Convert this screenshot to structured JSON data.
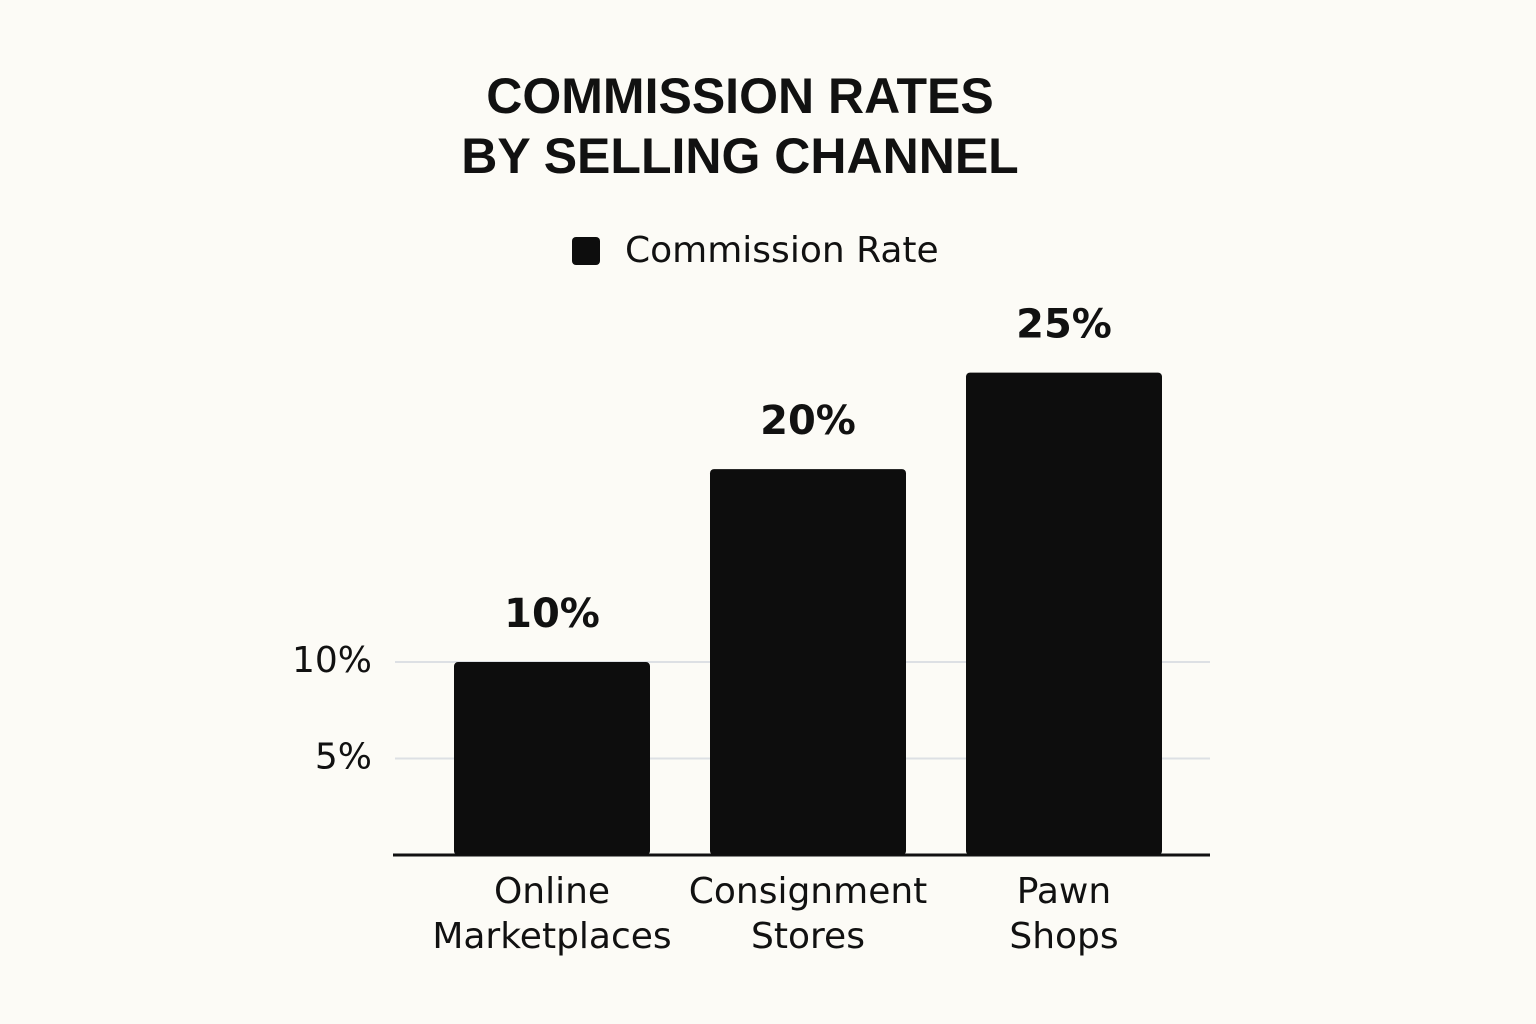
{
  "chart_data": {
    "type": "bar",
    "title": [
      "COMMISSION RATES",
      "BY SELLING CHANNEL"
    ],
    "categories": [
      [
        "Online",
        "Marketplaces"
      ],
      [
        "Consignment",
        "Stores"
      ],
      [
        "Pawn",
        "Shops"
      ]
    ],
    "series": [
      {
        "name": "Commission Rate",
        "color": "#0d0d0d",
        "values": [
          10,
          20,
          25
        ],
        "value_labels": [
          "10%",
          "20%",
          "25%"
        ]
      }
    ],
    "ylim": [
      0,
      27
    ],
    "yticks": [
      {
        "value": 5,
        "label": "5%"
      },
      {
        "value": 10,
        "label": "10%"
      }
    ],
    "grid": true
  }
}
